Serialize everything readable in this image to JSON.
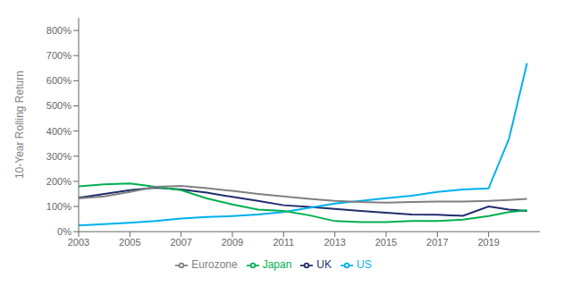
{
  "chart_data": {
    "type": "line",
    "ylabel": "10-Year Rolling Return",
    "x": [
      2003,
      2004,
      2005,
      2006,
      2007,
      2008,
      2009,
      2010,
      2011,
      2012,
      2013,
      2014,
      2015,
      2016,
      2017,
      2018,
      2019,
      2019.8,
      2020.5
    ],
    "series": [
      {
        "name": "UK",
        "color": "#1f2d6e",
        "values": [
          135,
          150,
          165,
          175,
          168,
          155,
          138,
          122,
          105,
          98,
          90,
          82,
          75,
          68,
          67,
          63,
          100,
          88,
          82
        ]
      },
      {
        "name": "US",
        "color": "#00b0f0",
        "values": [
          25,
          30,
          35,
          42,
          52,
          58,
          62,
          68,
          78,
          95,
          112,
          122,
          133,
          143,
          158,
          168,
          172,
          370,
          670
        ]
      },
      {
        "name": "Japan",
        "color": "#00b050",
        "values": [
          180,
          188,
          192,
          178,
          165,
          132,
          108,
          88,
          82,
          65,
          42,
          38,
          38,
          42,
          42,
          48,
          62,
          78,
          85
        ]
      },
      {
        "name": "Eurozone",
        "color": "#808080",
        "values": [
          132,
          140,
          158,
          178,
          182,
          173,
          162,
          150,
          140,
          130,
          122,
          118,
          115,
          118,
          120,
          120,
          122,
          126,
          130
        ]
      }
    ],
    "xlim": [
      2003,
      2021
    ],
    "ylim": [
      0,
      850
    ],
    "xticks": [
      2003,
      2005,
      2007,
      2009,
      2011,
      2013,
      2015,
      2017,
      2019
    ],
    "yticks": [
      {
        "value": 0,
        "label": "0%"
      },
      {
        "value": 100,
        "label": "100%"
      },
      {
        "value": 200,
        "label": "200%"
      },
      {
        "value": 300,
        "label": "300%"
      },
      {
        "value": 400,
        "label": "400%"
      },
      {
        "value": 500,
        "label": "500%"
      },
      {
        "value": 600,
        "label": "600%"
      },
      {
        "value": 700,
        "label": "700%"
      },
      {
        "value": 800,
        "label": "800%"
      }
    ],
    "grid": false,
    "legend": "bottom"
  }
}
